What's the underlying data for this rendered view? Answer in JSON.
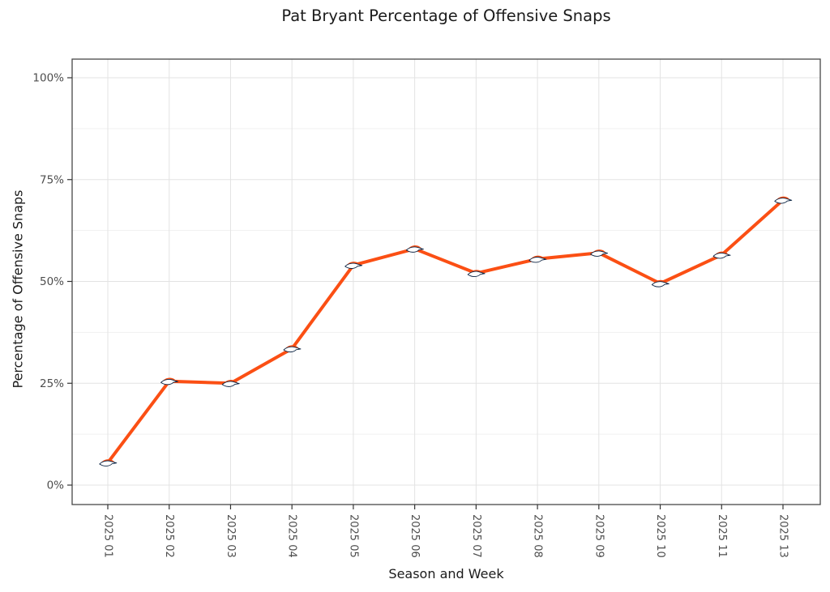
{
  "chart_data": {
    "type": "line",
    "title": "Pat Bryant Percentage of Offensive Snaps",
    "xlabel": "Season and Week",
    "ylabel": "Percentage of Offensive Snaps",
    "categories": [
      "2025 01",
      "2025 02",
      "2025 03",
      "2025 04",
      "2025 05",
      "2025 06",
      "2025 07",
      "2025 08",
      "2025 09",
      "2025 10",
      "2025 11",
      "2025 13"
    ],
    "series": [
      {
        "name": "Pat Bryant (DEN)",
        "values": [
          5.5,
          25.5,
          25,
          33.5,
          54,
          58,
          52,
          55.5,
          57,
          49.5,
          56.5,
          70
        ],
        "color": "#FB4F14",
        "marker": "denver-broncos-logo"
      }
    ],
    "y_ticks": [
      "0%",
      "25%",
      "50%",
      "75%",
      "100%"
    ],
    "y_tick_values": [
      0,
      25,
      50,
      75,
      100
    ],
    "y_minor_values": [
      12.5,
      37.5,
      62.5,
      87.5
    ],
    "ylim": [
      0,
      100
    ],
    "grid": "major-x, major-y, minor-y",
    "legend": "none"
  },
  "colors": {
    "line": "#FB4F14",
    "logo_mane": "#FB4F14",
    "logo_outline": "#0A2343",
    "grid_major": "#E3E3E3",
    "grid_minor": "#F1F1F1",
    "panel_border": "#474747",
    "tick": "#333333",
    "tick_label": "#4D4D4D",
    "title_text": "#1B1B1B"
  }
}
